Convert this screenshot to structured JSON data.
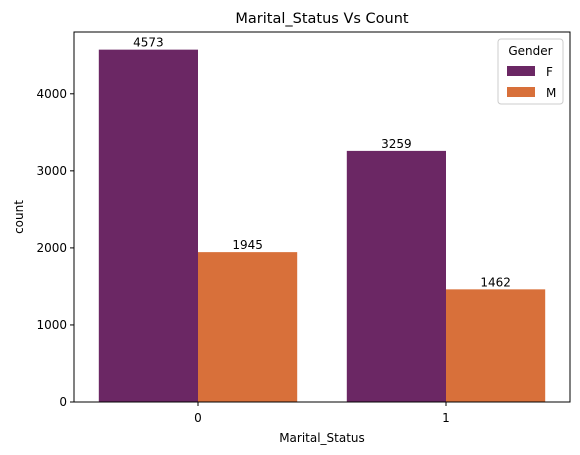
{
  "chart_data": {
    "type": "bar",
    "title": "Marital_Status Vs Count",
    "xlabel": "Marital_Status",
    "ylabel": "count",
    "categories": [
      "0",
      "1"
    ],
    "series": [
      {
        "name": "F",
        "values": [
          4573,
          3259
        ],
        "color": "#6b2764"
      },
      {
        "name": "M",
        "values": [
          1945,
          1462
        ],
        "color": "#d8703a"
      }
    ],
    "ylim": [
      0,
      4802
    ],
    "yticks": [
      0,
      1000,
      2000,
      3000,
      4000
    ],
    "ytick_labels": [
      "0",
      "1000",
      "2000",
      "3000",
      "4000"
    ],
    "grid": false,
    "legend": {
      "title": "Gender",
      "position": "top-right"
    }
  }
}
